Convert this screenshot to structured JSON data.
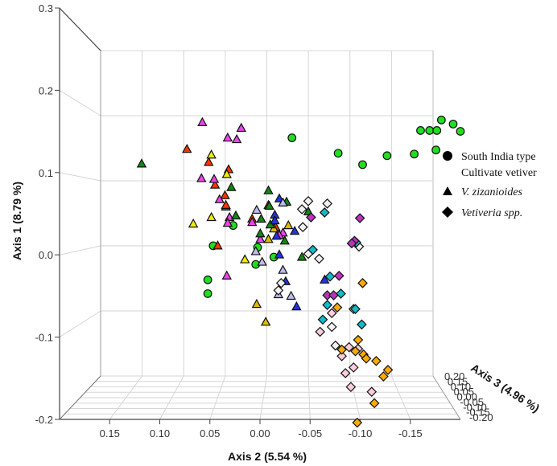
{
  "chart_data": {
    "type": "scatter",
    "title": "",
    "projection": "3d",
    "grid": true,
    "legend_position": "right",
    "axis1": {
      "label": "Axis 1 (8.79 %)",
      "range": [
        -0.2,
        0.3
      ],
      "ticks": [
        "-0.2",
        "-0.1",
        "0.0",
        "0.1",
        "0.2",
        "0.3"
      ]
    },
    "axis2": {
      "label": "Axis 2 (5.54 %)",
      "range": [
        0.2,
        -0.2
      ],
      "ticks": [
        "0.15",
        "0.10",
        "0.05",
        "0.00",
        "-0.05",
        "-0.10",
        "-0.15"
      ]
    },
    "axis3": {
      "label": "Axis 3 (4.96 %)",
      "range": [
        0.2,
        -0.2
      ],
      "ticks": [
        "0.20",
        "0.15",
        "0.10",
        "0.05",
        "0.00",
        "-0.05",
        "-0.10",
        "-0.15",
        "-0.20"
      ]
    },
    "legend": [
      {
        "shape": "circle",
        "lines": [
          "South India type",
          "Cultivate vetiver"
        ],
        "italic": false
      },
      {
        "shape": "triangle",
        "lines": [
          "V. zizanioides"
        ],
        "italic": true
      },
      {
        "shape": "diamond",
        "lines": [
          "Vetiveria spp."
        ],
        "italic": true
      }
    ],
    "colors": {
      "green": "#22dd22",
      "red": "#ff3300",
      "darkgreen": "#118811",
      "magenta": "#ee44ee",
      "yellow": "#eeee00",
      "gold": "#ddbb00",
      "blue": "#2233dd",
      "lavender": "#bbbbee",
      "white": "#f2f2f2",
      "cyan": "#11bbcc",
      "purple": "#bb33bb",
      "orange": "#ffaa00",
      "pink": "#ffccdd"
    },
    "points": [
      {
        "shape": "circle",
        "color": "green",
        "x": 0.145,
        "y": -0.022
      },
      {
        "shape": "circle",
        "color": "green",
        "x": 0.126,
        "y": -0.073
      },
      {
        "shape": "circle",
        "color": "green",
        "x": 0.112,
        "y": -0.1
      },
      {
        "shape": "circle",
        "color": "green",
        "x": 0.123,
        "y": -0.127
      },
      {
        "shape": "circle",
        "color": "green",
        "x": 0.125,
        "y": -0.157
      },
      {
        "shape": "circle",
        "color": "green",
        "x": 0.154,
        "y": -0.164
      },
      {
        "shape": "circle",
        "color": "green",
        "x": 0.154,
        "y": -0.174
      },
      {
        "shape": "circle",
        "color": "green",
        "x": 0.13,
        "y": -0.181
      },
      {
        "shape": "circle",
        "color": "green",
        "x": 0.154,
        "y": -0.182
      },
      {
        "shape": "circle",
        "color": "green",
        "x": 0.162,
        "y": -0.2
      },
      {
        "shape": "circle",
        "color": "green",
        "x": 0.167,
        "y": -0.187
      },
      {
        "shape": "circle",
        "color": "green",
        "x": 0.153,
        "y": -0.208
      },
      {
        "shape": "circle",
        "color": "green",
        "x": 0.037,
        "y": 0.043
      },
      {
        "shape": "circle",
        "color": "green",
        "x": 0.012,
        "y": 0.065
      },
      {
        "shape": "circle",
        "color": "green",
        "x": 0.01,
        "y": 0.016
      },
      {
        "shape": "circle",
        "color": "green",
        "x": -0.002,
        "y": -0.002
      },
      {
        "shape": "circle",
        "color": "green",
        "x": -0.011,
        "y": 0.018
      },
      {
        "shape": "circle",
        "color": "green",
        "x": -0.03,
        "y": 0.071
      },
      {
        "shape": "circle",
        "color": "green",
        "x": -0.047,
        "y": 0.071
      },
      {
        "shape": "triangle",
        "color": "darkgreen",
        "x": 0.113,
        "y": 0.144
      },
      {
        "shape": "triangle",
        "color": "red",
        "x": 0.131,
        "y": 0.094
      },
      {
        "shape": "triangle",
        "color": "red",
        "x": 0.115,
        "y": 0.07
      },
      {
        "shape": "triangle",
        "color": "red",
        "x": 0.106,
        "y": 0.048
      },
      {
        "shape": "triangle",
        "color": "red",
        "x": 0.087,
        "y": 0.063
      },
      {
        "shape": "triangle",
        "color": "red",
        "x": 0.074,
        "y": 0.052
      },
      {
        "shape": "triangle",
        "color": "red",
        "x": 0.06,
        "y": 0.051
      },
      {
        "shape": "triangle",
        "color": "red",
        "x": 0.062,
        "y": 0.004
      },
      {
        "shape": "triangle",
        "color": "red",
        "x": 0.062,
        "y": 0.051
      },
      {
        "shape": "triangle",
        "color": "red",
        "x": 0.012,
        "y": 0.06
      },
      {
        "shape": "triangle",
        "color": "red",
        "x": 0.035,
        "y": -0.004
      },
      {
        "shape": "triangle",
        "color": "red",
        "x": 0.045,
        "y": 0.022
      },
      {
        "shape": "triangle",
        "color": "magenta",
        "x": 0.164,
        "y": 0.077
      },
      {
        "shape": "triangle",
        "color": "magenta",
        "x": 0.157,
        "y": 0.034
      },
      {
        "shape": "triangle",
        "color": "magenta",
        "x": 0.145,
        "y": 0.049
      },
      {
        "shape": "triangle",
        "color": "magenta",
        "x": 0.143,
        "y": 0.039
      },
      {
        "shape": "triangle",
        "color": "magenta",
        "x": 0.095,
        "y": 0.078
      },
      {
        "shape": "triangle",
        "color": "magenta",
        "x": 0.094,
        "y": 0.064
      },
      {
        "shape": "triangle",
        "color": "magenta",
        "x": 0.069,
        "y": 0.058
      },
      {
        "shape": "triangle",
        "color": "magenta",
        "x": 0.047,
        "y": 0.047
      },
      {
        "shape": "triangle",
        "color": "magenta",
        "x": 0.04,
        "y": 0.049
      },
      {
        "shape": "triangle",
        "color": "magenta",
        "x": 0.041,
        "y": 0.022
      },
      {
        "shape": "triangle",
        "color": "magenta",
        "x": 0.02,
        "y": 0.013
      },
      {
        "shape": "triangle",
        "color": "magenta",
        "x": -0.025,
        "y": 0.05
      },
      {
        "shape": "triangle",
        "color": "magenta",
        "x": 0.028,
        "y": -0.012
      },
      {
        "shape": "triangle",
        "color": "magenta",
        "x": 0.025,
        "y": -0.008
      },
      {
        "shape": "triangle",
        "color": "yellow",
        "x": 0.124,
        "y": 0.067
      },
      {
        "shape": "triangle",
        "color": "yellow",
        "x": 0.1,
        "y": 0.05
      },
      {
        "shape": "triangle",
        "color": "yellow",
        "x": 0.039,
        "y": 0.087
      },
      {
        "shape": "triangle",
        "color": "yellow",
        "x": 0.047,
        "y": 0.067
      },
      {
        "shape": "triangle",
        "color": "yellow",
        "x": -0.005,
        "y": 0.03
      },
      {
        "shape": "triangle",
        "color": "gold",
        "x": 0.02,
        "y": 0.004
      },
      {
        "shape": "triangle",
        "color": "gold",
        "x": 0.033,
        "y": -0.002
      },
      {
        "shape": "triangle",
        "color": "gold",
        "x": 0.037,
        "y": -0.018
      },
      {
        "shape": "triangle",
        "color": "gold",
        "x": -0.06,
        "y": 0.017
      },
      {
        "shape": "triangle",
        "color": "gold",
        "x": -0.082,
        "y": 0.007
      },
      {
        "shape": "triangle",
        "color": "darkgreen",
        "x": 0.084,
        "y": 0.045
      },
      {
        "shape": "triangle",
        "color": "darkgreen",
        "x": 0.049,
        "y": 0.04
      },
      {
        "shape": "triangle",
        "color": "darkgreen",
        "x": 0.045,
        "y": 0.012
      },
      {
        "shape": "triangle",
        "color": "darkgreen",
        "x": 0.08,
        "y": 0.004
      },
      {
        "shape": "triangle",
        "color": "darkgreen",
        "x": 0.061,
        "y": 0.003
      },
      {
        "shape": "triangle",
        "color": "darkgreen",
        "x": 0.038,
        "y": 0.002
      },
      {
        "shape": "triangle",
        "color": "darkgreen",
        "x": 0.027,
        "y": 0.013
      },
      {
        "shape": "triangle",
        "color": "darkgreen",
        "x": 0.018,
        "y": -0.014
      },
      {
        "shape": "triangle",
        "color": "darkgreen",
        "x": -0.002,
        "y": -0.033
      },
      {
        "shape": "triangle",
        "color": "darkgreen",
        "x": 0.066,
        "y": -0.016
      },
      {
        "shape": "triangle",
        "color": "darkgreen",
        "x": 0.054,
        "y": -0.04
      },
      {
        "shape": "triangle",
        "color": "blue",
        "x": 0.07,
        "y": -0.008
      },
      {
        "shape": "triangle",
        "color": "blue",
        "x": 0.05,
        "y": -0.003
      },
      {
        "shape": "triangle",
        "color": "blue",
        "x": 0.043,
        "y": -0.003
      },
      {
        "shape": "triangle",
        "color": "blue",
        "x": 0.03,
        "y": -0.025
      },
      {
        "shape": "triangle",
        "color": "blue",
        "x": 0.024,
        "y": -0.005
      },
      {
        "shape": "triangle",
        "color": "blue",
        "x": 0.001,
        "y": -0.008
      },
      {
        "shape": "triangle",
        "color": "blue",
        "x": -0.032,
        "y": -0.015
      },
      {
        "shape": "triangle",
        "color": "blue",
        "x": -0.03,
        "y": -0.058
      },
      {
        "shape": "triangle",
        "color": "blue",
        "x": -0.063,
        "y": -0.027
      },
      {
        "shape": "triangle",
        "color": "lavender",
        "x": 0.065,
        "y": -0.012
      },
      {
        "shape": "triangle",
        "color": "lavender",
        "x": 0.056,
        "y": 0.017
      },
      {
        "shape": "triangle",
        "color": "lavender",
        "x": 0.005,
        "y": 0.018
      },
      {
        "shape": "triangle",
        "color": "lavender",
        "x": -0.008,
        "y": 0.011
      },
      {
        "shape": "triangle",
        "color": "lavender",
        "x": -0.018,
        "y": -0.012
      },
      {
        "shape": "triangle",
        "color": "lavender",
        "x": -0.048,
        "y": -0.007
      },
      {
        "shape": "triangle",
        "color": "lavender",
        "x": -0.05,
        "y": -0.021
      },
      {
        "shape": "diamond",
        "color": "white",
        "x": 0.064,
        "y": -0.061
      },
      {
        "shape": "diamond",
        "color": "white",
        "x": 0.067,
        "y": -0.04
      },
      {
        "shape": "diamond",
        "color": "white",
        "x": 0.057,
        "y": -0.033
      },
      {
        "shape": "diamond",
        "color": "white",
        "x": 0.035,
        "y": -0.034
      },
      {
        "shape": "diamond",
        "color": "white",
        "x": 0.011,
        "y": -0.096
      },
      {
        "shape": "diamond",
        "color": "white",
        "x": 0.002,
        "y": -0.04
      },
      {
        "shape": "diamond",
        "color": "white",
        "x": -0.004,
        "y": -0.052
      },
      {
        "shape": "diamond",
        "color": "white",
        "x": -0.034,
        "y": -0.01
      },
      {
        "shape": "diamond",
        "color": "white",
        "x": -0.043,
        "y": -0.007
      },
      {
        "shape": "diamond",
        "color": "white",
        "x": -0.066,
        "y": -0.09
      },
      {
        "shape": "diamond",
        "color": "white",
        "x": -0.088,
        "y": -0.066
      },
      {
        "shape": "diamond",
        "color": "white",
        "x": -0.111,
        "y": -0.07
      },
      {
        "shape": "diamond",
        "color": "cyan",
        "x": 0.053,
        "y": -0.058
      },
      {
        "shape": "diamond",
        "color": "cyan",
        "x": 0.016,
        "y": -0.093
      },
      {
        "shape": "diamond",
        "color": "cyan",
        "x": 0.007,
        "y": -0.045
      },
      {
        "shape": "diamond",
        "color": "cyan",
        "x": -0.026,
        "y": -0.064
      },
      {
        "shape": "diamond",
        "color": "cyan",
        "x": -0.047,
        "y": -0.076
      },
      {
        "shape": "diamond",
        "color": "cyan",
        "x": -0.061,
        "y": -0.061
      },
      {
        "shape": "diamond",
        "color": "cyan",
        "x": -0.066,
        "y": -0.092
      },
      {
        "shape": "diamond",
        "color": "cyan",
        "x": -0.079,
        "y": -0.056
      },
      {
        "shape": "diamond",
        "color": "cyan",
        "x": -0.085,
        "y": -0.099
      },
      {
        "shape": "diamond",
        "color": "purple",
        "x": 0.047,
        "y": -0.043
      },
      {
        "shape": "diamond",
        "color": "purple",
        "x": 0.018,
        "y": -0.091
      },
      {
        "shape": "diamond",
        "color": "purple",
        "x": 0.046,
        "y": -0.097
      },
      {
        "shape": "diamond",
        "color": "purple",
        "x": 0.015,
        "y": -0.088
      },
      {
        "shape": "diamond",
        "color": "purple",
        "x": -0.025,
        "y": -0.074
      },
      {
        "shape": "diamond",
        "color": "purple",
        "x": -0.049,
        "y": -0.061
      },
      {
        "shape": "diamond",
        "color": "purple",
        "x": -0.049,
        "y": -0.068
      },
      {
        "shape": "diamond",
        "color": "pink",
        "x": -0.094,
        "y": -0.053
      },
      {
        "shape": "diamond",
        "color": "pink",
        "x": -0.113,
        "y": -0.085
      },
      {
        "shape": "diamond",
        "color": "pink",
        "x": -0.115,
        "y": -0.095
      },
      {
        "shape": "diamond",
        "color": "pink",
        "x": -0.124,
        "y": -0.077
      },
      {
        "shape": "diamond",
        "color": "pink",
        "x": -0.138,
        "y": -0.09
      },
      {
        "shape": "diamond",
        "color": "pink",
        "x": -0.145,
        "y": -0.081
      },
      {
        "shape": "diamond",
        "color": "pink",
        "x": -0.162,
        "y": -0.087
      },
      {
        "shape": "diamond",
        "color": "pink",
        "x": -0.168,
        "y": -0.11
      },
      {
        "shape": "diamond",
        "color": "pink",
        "x": -0.071,
        "y": -0.066
      },
      {
        "shape": "diamond",
        "color": "orange",
        "x": -0.034,
        "y": -0.1
      },
      {
        "shape": "diamond",
        "color": "orange",
        "x": -0.064,
        "y": -0.072
      },
      {
        "shape": "diamond",
        "color": "orange",
        "x": -0.104,
        "y": -0.095
      },
      {
        "shape": "diamond",
        "color": "orange",
        "x": -0.116,
        "y": -0.077
      },
      {
        "shape": "diamond",
        "color": "orange",
        "x": -0.118,
        "y": -0.092
      },
      {
        "shape": "diamond",
        "color": "orange",
        "x": -0.122,
        "y": -0.101
      },
      {
        "shape": "diamond",
        "color": "orange",
        "x": -0.127,
        "y": -0.104
      },
      {
        "shape": "diamond",
        "color": "orange",
        "x": -0.13,
        "y": -0.115
      },
      {
        "shape": "diamond",
        "color": "orange",
        "x": -0.141,
        "y": -0.128
      },
      {
        "shape": "diamond",
        "color": "orange",
        "x": -0.149,
        "y": -0.123
      },
      {
        "shape": "diamond",
        "color": "orange",
        "x": -0.182,
        "y": -0.113
      },
      {
        "shape": "diamond",
        "color": "orange",
        "x": -0.206,
        "y": -0.094
      }
    ]
  }
}
